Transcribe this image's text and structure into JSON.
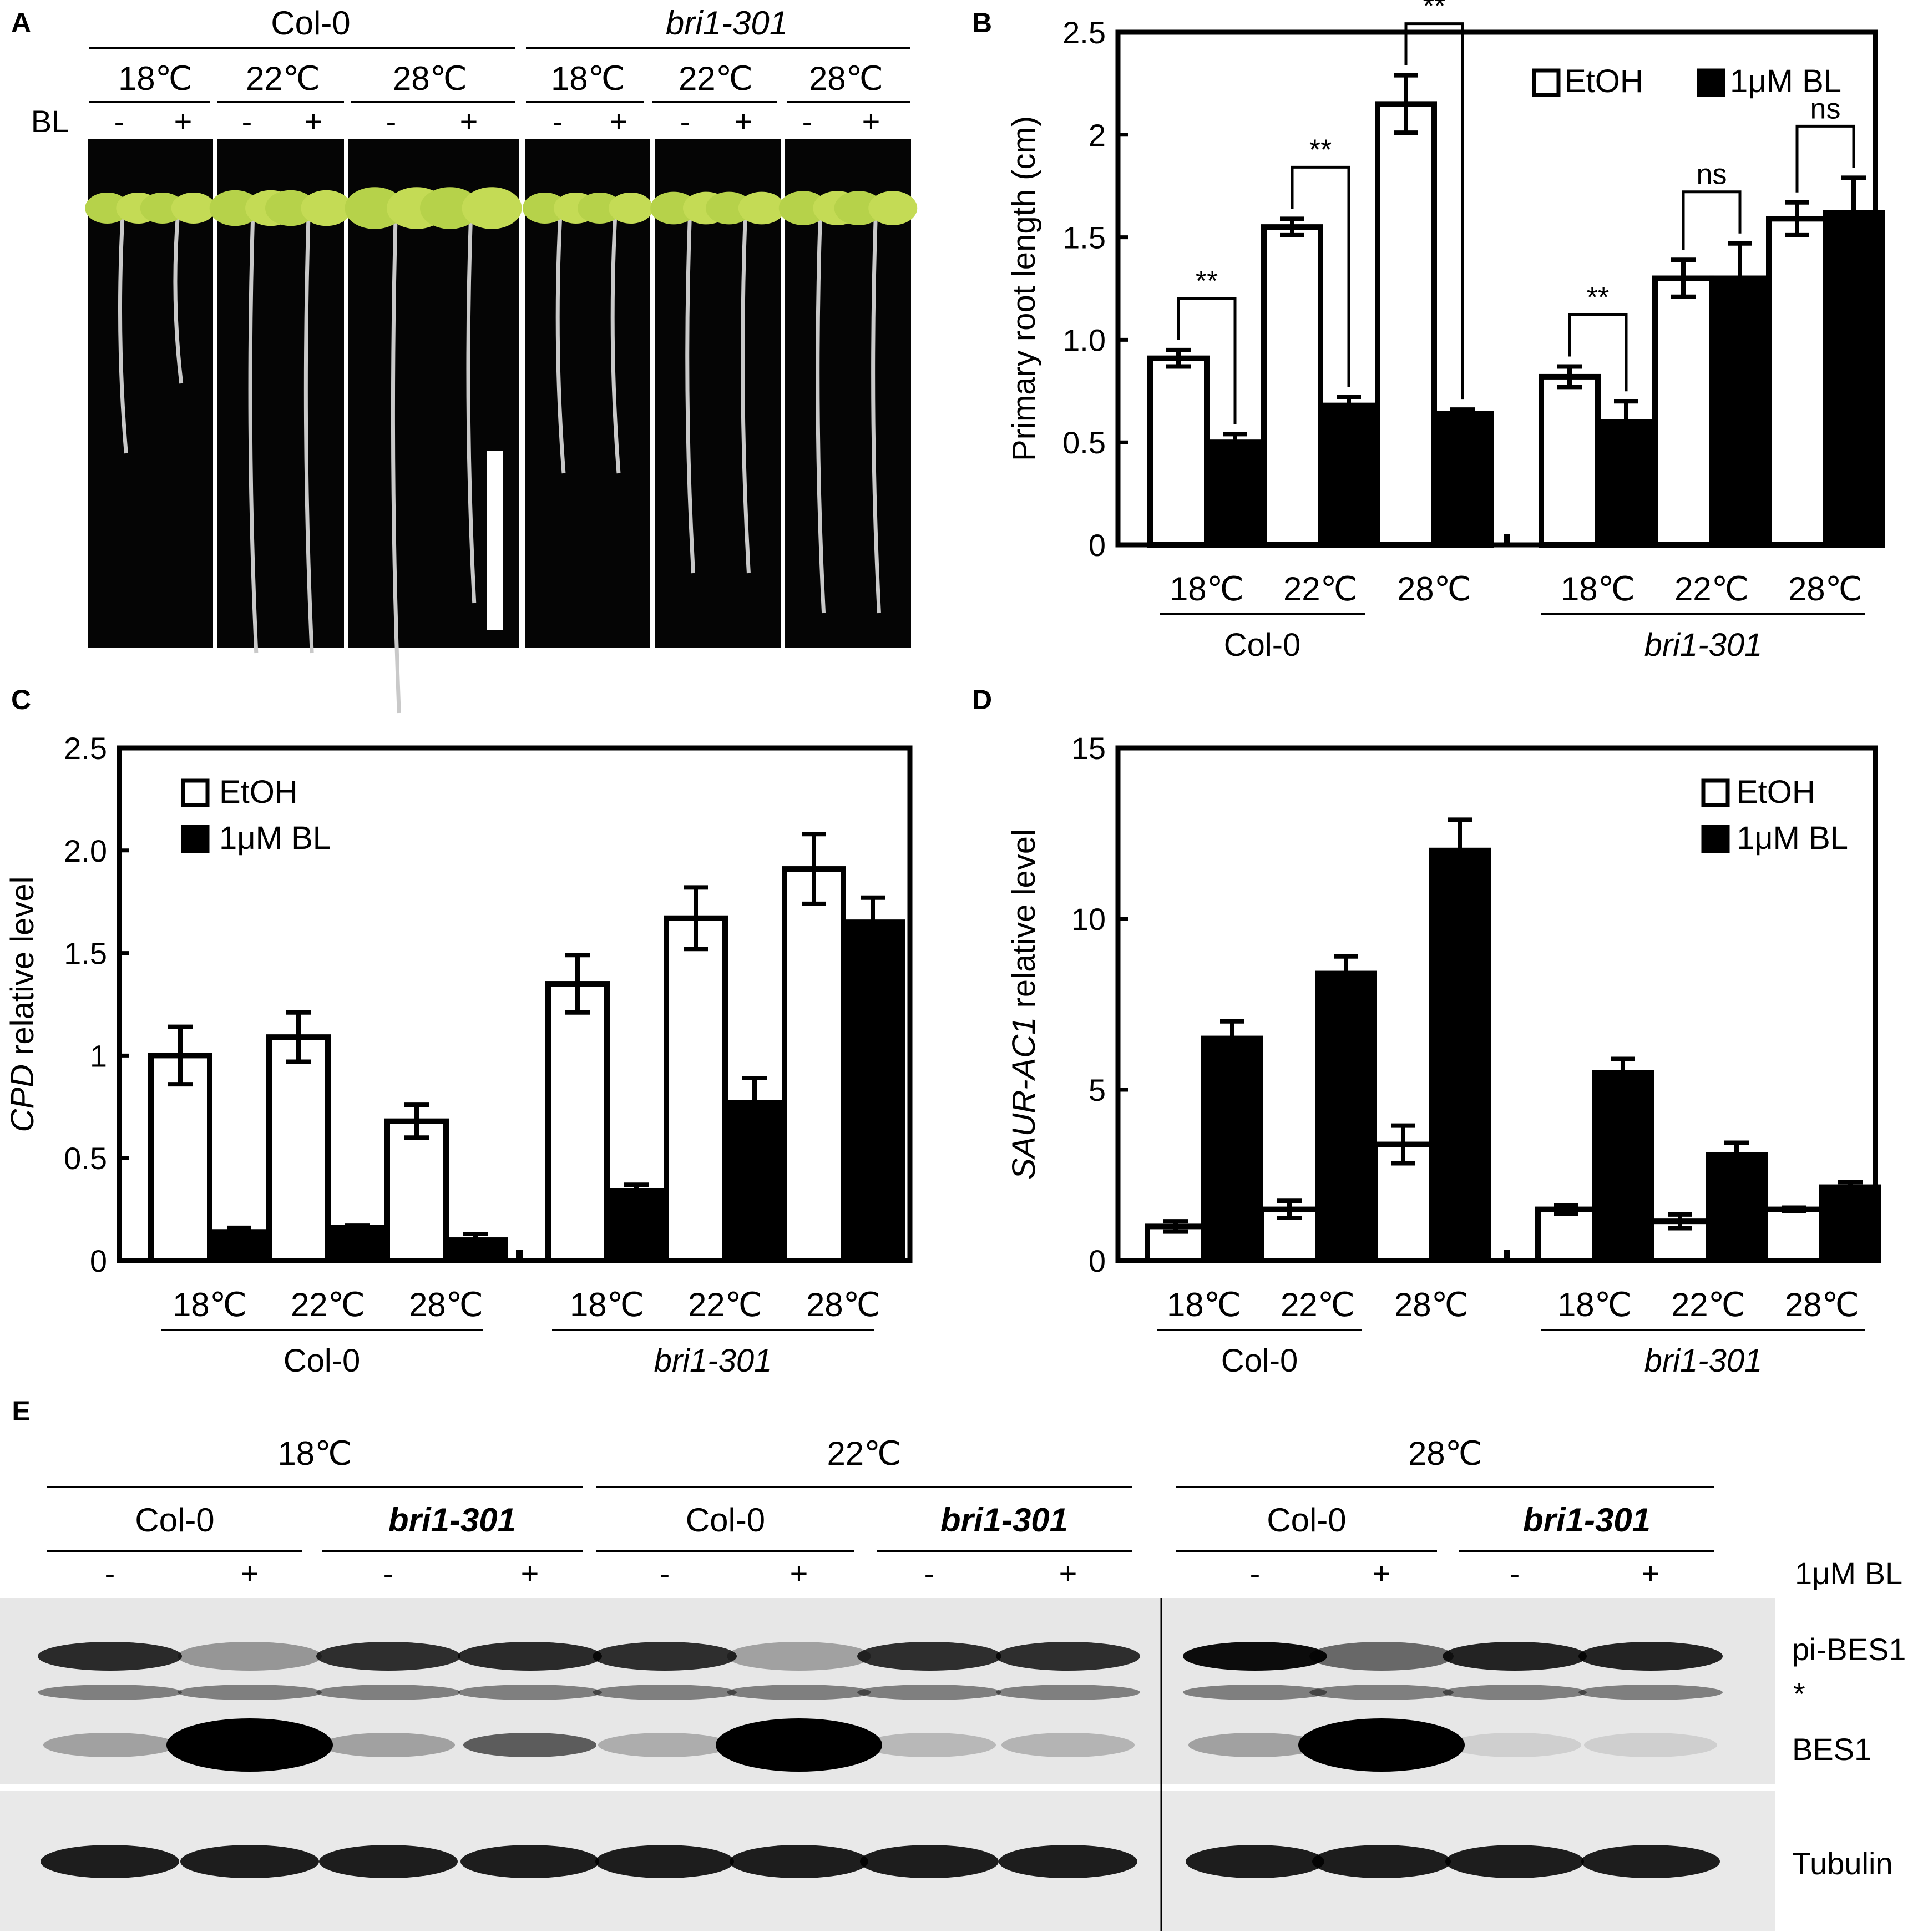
{
  "figure": {
    "panel_a": {
      "letter": "A",
      "genotypes": [
        "Col-0",
        "bri1-301"
      ],
      "temps": [
        "18℃",
        "22℃",
        "28℃"
      ],
      "treatment_label": "BL",
      "signs": [
        "-",
        "+"
      ]
    },
    "panel_b": {
      "letter": "B",
      "ylabel": "Primary root length (cm)",
      "yticks": [
        "0",
        "0.5",
        "1.0",
        "1.5",
        "2",
        "2.5"
      ],
      "legend": [
        "EtOH",
        "1μM BL"
      ],
      "sig_labels": [
        "**",
        "**",
        "**",
        "**",
        "ns",
        "ns"
      ]
    },
    "panel_c": {
      "letter": "C",
      "ylabel_italic": "CPD",
      "ylabel_rest": " relative level",
      "yticks": [
        "0",
        "0.5",
        "1",
        "1.5",
        "2.0",
        "2.5"
      ],
      "legend": [
        "EtOH",
        "1μM BL"
      ]
    },
    "panel_d": {
      "letter": "D",
      "ylabel_italic": "SAUR-AC1",
      "ylabel_rest": " relative level",
      "yticks": [
        "0",
        "5",
        "10",
        "15"
      ],
      "legend": [
        "EtOH",
        "1μM BL"
      ]
    },
    "panel_e": {
      "letter": "E",
      "temps": [
        "18℃",
        "22℃",
        "28℃"
      ],
      "genotypes": [
        "Col-0",
        "bri1-301"
      ],
      "signs": [
        "-",
        "+"
      ],
      "treatment_label": "1μM BL",
      "band_labels": [
        "pi-BES1",
        "*",
        "BES1",
        "Tubulin"
      ]
    }
  },
  "chart_data": [
    {
      "panel": "B",
      "type": "bar",
      "ylabel": "Primary root length (cm)",
      "ylim": [
        0,
        2.5
      ],
      "groups": [
        "Col-0",
        "bri1-301"
      ],
      "categories": [
        "18℃",
        "22℃",
        "28℃",
        "18℃",
        "22℃",
        "28℃"
      ],
      "series": [
        {
          "name": "EtOH",
          "values": [
            0.91,
            1.55,
            2.15,
            0.82,
            1.3,
            1.59
          ],
          "errors": [
            0.04,
            0.04,
            0.14,
            0.05,
            0.09,
            0.08
          ]
        },
        {
          "name": "1μM BL",
          "values": [
            0.5,
            0.68,
            0.64,
            0.6,
            1.3,
            1.62
          ],
          "errors": [
            0.04,
            0.04,
            0.02,
            0.1,
            0.17,
            0.17
          ]
        }
      ],
      "significance": [
        "**",
        "**",
        "**",
        "**",
        "ns",
        "ns"
      ],
      "legend_position": "top-right",
      "grid": false
    },
    {
      "panel": "C",
      "type": "bar",
      "ylabel": "CPD relative level",
      "ylim": [
        0,
        2.5
      ],
      "groups": [
        "Col-0",
        "bri1-301"
      ],
      "categories": [
        "18℃",
        "22℃",
        "28℃",
        "18℃",
        "22℃",
        "28℃"
      ],
      "series": [
        {
          "name": "EtOH",
          "values": [
            1.0,
            1.09,
            0.68,
            1.35,
            1.67,
            1.91
          ],
          "errors": [
            0.14,
            0.12,
            0.08,
            0.14,
            0.15,
            0.17
          ]
        },
        {
          "name": "1μM BL",
          "values": [
            0.14,
            0.16,
            0.1,
            0.34,
            0.77,
            1.65
          ],
          "errors": [
            0.02,
            0.01,
            0.03,
            0.03,
            0.12,
            0.12
          ]
        }
      ],
      "legend_position": "top-left",
      "grid": false
    },
    {
      "panel": "D",
      "type": "bar",
      "ylabel": "SAUR-AC1 relative level",
      "ylim": [
        0,
        15
      ],
      "groups": [
        "Col-0",
        "bri1-301"
      ],
      "categories": [
        "18℃",
        "22℃",
        "28℃",
        "18℃",
        "22℃",
        "28℃"
      ],
      "series": [
        {
          "name": "EtOH",
          "values": [
            1.0,
            1.5,
            3.4,
            1.5,
            1.15,
            1.5
          ],
          "errors": [
            0.15,
            0.25,
            0.55,
            0.12,
            0.2,
            0.05
          ]
        },
        {
          "name": "1μM BL",
          "values": [
            6.5,
            8.4,
            12.0,
            5.5,
            3.1,
            2.15
          ],
          "errors": [
            0.5,
            0.5,
            0.9,
            0.4,
            0.35,
            0.15
          ]
        }
      ],
      "legend_position": "top-right",
      "grid": false
    }
  ]
}
